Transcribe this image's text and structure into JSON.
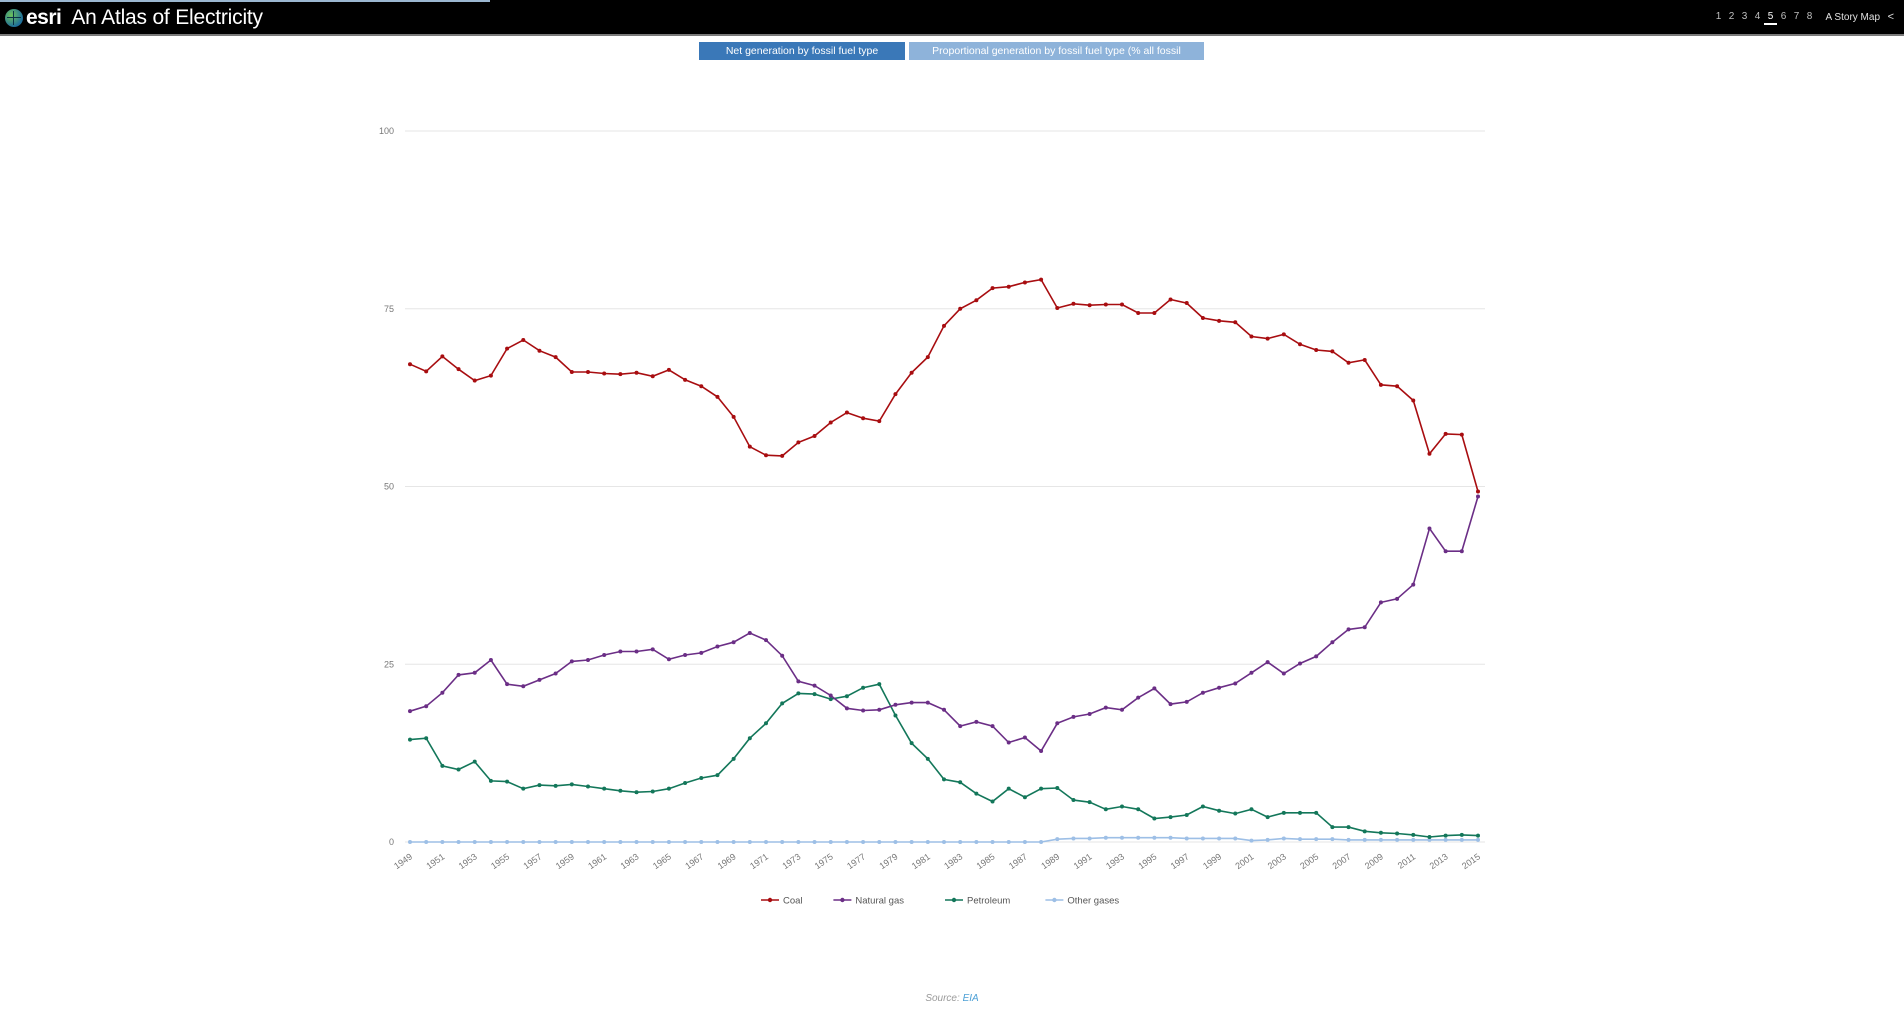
{
  "header": {
    "logo": "esri",
    "title": "An Atlas of Electricity",
    "pages": [
      "1",
      "2",
      "3",
      "4",
      "5",
      "6",
      "7",
      "8"
    ],
    "active_page": "5",
    "story_map_label": "A Story Map",
    "share_icon": "share-icon"
  },
  "tabs": [
    {
      "label": "Net generation by fossil fuel type (GWh)",
      "active": true
    },
    {
      "label": "Proportional generation by fossil fuel type (% all fossil fuels)",
      "active": false
    }
  ],
  "source": {
    "prefix": "Source: ",
    "link": "EIA"
  },
  "chart_data": {
    "type": "line",
    "ylim": [
      0,
      100
    ],
    "yticks": [
      0,
      25,
      50,
      75,
      100
    ],
    "xtick_labels": [
      "1949",
      "1951",
      "1953",
      "1955",
      "1957",
      "1959",
      "1961",
      "1963",
      "1965",
      "1967",
      "1969",
      "1971",
      "1973",
      "1975",
      "1977",
      "1979",
      "1981",
      "1983",
      "1985",
      "1987",
      "1989",
      "1991",
      "1993",
      "1995",
      "1997",
      "1999",
      "2001",
      "2003",
      "2005",
      "2007",
      "2009",
      "2011",
      "2013",
      "2015"
    ],
    "x_start": 1949,
    "x_end": 2015,
    "legend_position": "bottom",
    "series": [
      {
        "name": "Coal",
        "color": "#a80d10",
        "values": [
          67.2,
          66.2,
          68.3,
          66.5,
          64.9,
          65.6,
          69.4,
          70.6,
          69.1,
          68.2,
          66.1,
          66.1,
          65.9,
          65.8,
          66.0,
          65.5,
          66.4,
          65.0,
          64.1,
          62.6,
          59.8,
          55.6,
          54.4,
          54.3,
          56.2,
          57.1,
          59.0,
          60.4,
          59.6,
          59.2,
          63.0,
          66.0,
          68.2,
          72.6,
          75.0,
          76.2,
          77.9,
          78.1,
          78.7,
          79.1,
          75.1,
          75.7,
          75.5,
          75.6,
          75.6,
          74.4,
          74.4,
          76.3,
          75.8,
          73.7,
          73.3,
          73.1,
          71.1,
          70.8,
          71.4,
          70.0,
          69.2,
          69.0,
          67.4,
          67.8,
          64.3,
          64.1,
          62.1,
          54.6,
          57.4,
          57.3,
          49.3
        ]
      },
      {
        "name": "Natural gas",
        "color": "#6b2e86",
        "values": [
          18.4,
          19.1,
          21.0,
          23.5,
          23.8,
          25.6,
          22.2,
          21.9,
          22.8,
          23.7,
          25.4,
          25.6,
          26.3,
          26.8,
          26.8,
          27.1,
          25.7,
          26.3,
          26.6,
          27.5,
          28.1,
          29.4,
          28.4,
          26.2,
          22.6,
          22.0,
          20.6,
          18.8,
          18.5,
          18.6,
          19.3,
          19.6,
          19.6,
          18.6,
          16.3,
          16.9,
          16.3,
          14.0,
          14.7,
          12.8,
          16.7,
          17.6,
          18.0,
          18.9,
          18.6,
          20.3,
          21.6,
          19.4,
          19.7,
          21.0,
          21.7,
          22.3,
          23.8,
          25.3,
          23.7,
          25.1,
          26.1,
          28.1,
          29.9,
          30.2,
          33.7,
          34.2,
          36.2,
          44.1,
          40.9,
          40.9,
          48.6
        ]
      },
      {
        "name": "Petroleum",
        "color": "#13775a",
        "values": [
          14.4,
          14.6,
          10.7,
          10.2,
          11.3,
          8.6,
          8.5,
          7.5,
          8.0,
          7.9,
          8.1,
          7.8,
          7.5,
          7.2,
          7.0,
          7.1,
          7.5,
          8.3,
          9.0,
          9.4,
          11.7,
          14.6,
          16.7,
          19.5,
          20.9,
          20.8,
          20.1,
          20.5,
          21.7,
          22.2,
          17.8,
          13.9,
          11.7,
          8.8,
          8.4,
          6.8,
          5.7,
          7.5,
          6.3,
          7.5,
          7.6,
          5.9,
          5.6,
          4.6,
          5.0,
          4.6,
          3.3,
          3.5,
          3.8,
          5.0,
          4.4,
          4.0,
          4.6,
          3.5,
          4.1,
          4.1,
          4.1,
          2.1,
          2.1,
          1.5,
          1.3,
          1.2,
          1.0,
          0.7,
          0.9,
          1.0,
          0.9
        ]
      },
      {
        "name": "Other gases",
        "color": "#9dbfe6",
        "values": [
          0.0,
          0.0,
          0.0,
          0.0,
          0.0,
          0.0,
          0.0,
          0.0,
          0.0,
          0.0,
          0.0,
          0.0,
          0.0,
          0.0,
          0.0,
          0.0,
          0.0,
          0.0,
          0.0,
          0.0,
          0.0,
          0.0,
          0.0,
          0.0,
          0.0,
          0.0,
          0.0,
          0.0,
          0.0,
          0.0,
          0.0,
          0.0,
          0.0,
          0.0,
          0.0,
          0.0,
          0.0,
          0.0,
          0.0,
          0.0,
          0.4,
          0.5,
          0.5,
          0.6,
          0.6,
          0.6,
          0.6,
          0.6,
          0.5,
          0.5,
          0.5,
          0.5,
          0.2,
          0.3,
          0.5,
          0.4,
          0.4,
          0.4,
          0.3,
          0.3,
          0.3,
          0.3,
          0.3,
          0.3,
          0.3,
          0.3,
          0.3
        ]
      }
    ]
  }
}
